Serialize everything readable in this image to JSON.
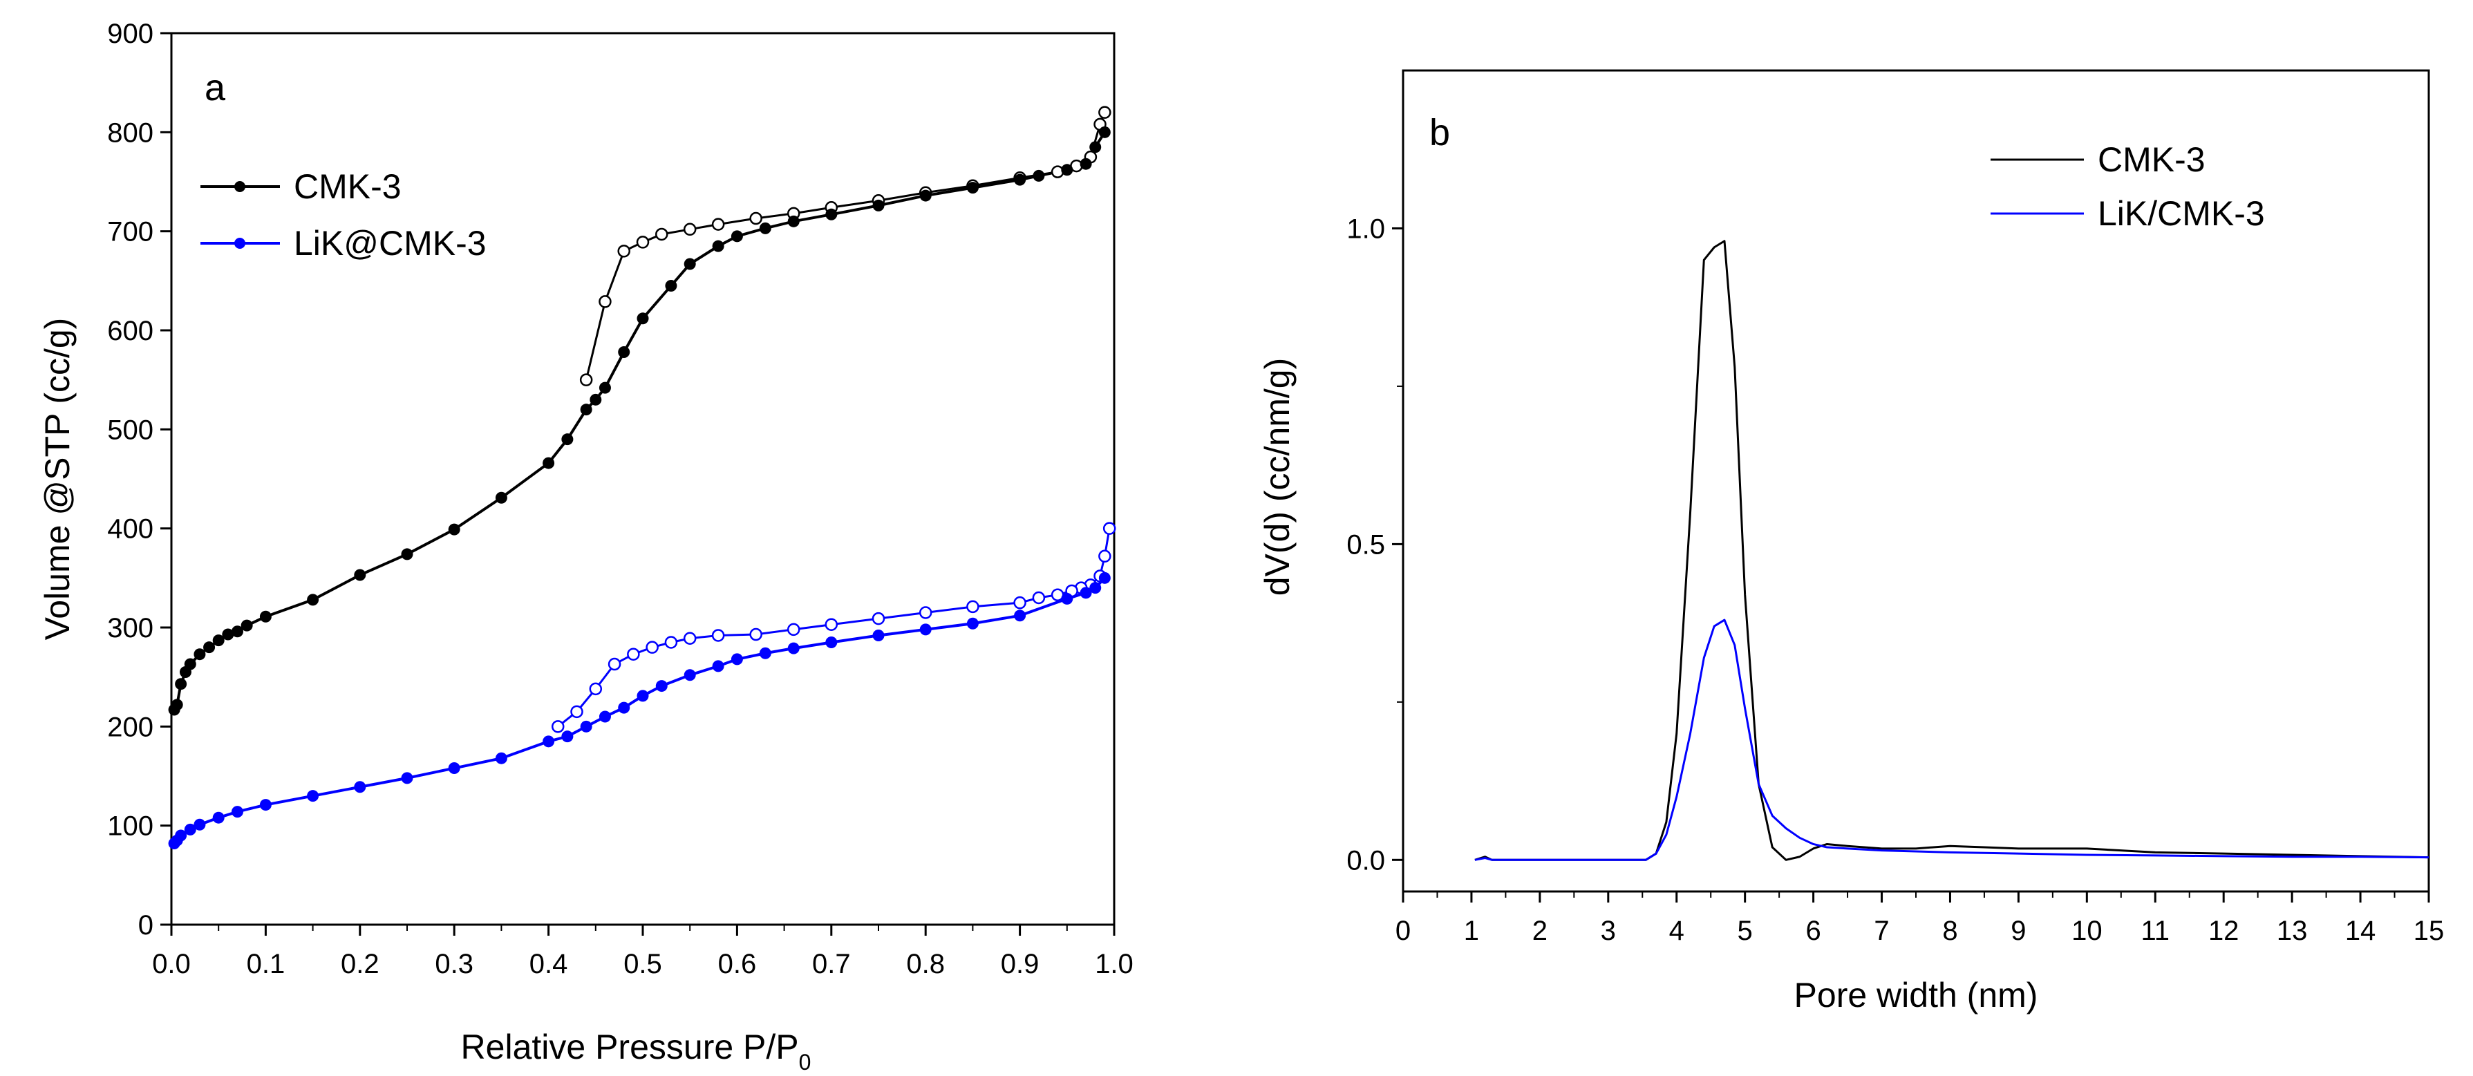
{
  "chart_data": [
    {
      "type": "line",
      "panel_label": "a",
      "title": "",
      "xlabel": "Relative Pressure P/P",
      "xlabel_subscript": "0",
      "ylabel": "Volume @STP (cc/g)",
      "xlim": [
        0.0,
        1.0
      ],
      "ylim": [
        0,
        900
      ],
      "xticks": [
        0.0,
        0.1,
        0.2,
        0.3,
        0.4,
        0.5,
        0.6,
        0.7,
        0.8,
        0.9,
        1.0
      ],
      "xtick_labels": [
        "0.0",
        "0.1",
        "0.2",
        "0.3",
        "0.4",
        "0.5",
        "0.6",
        "0.7",
        "0.8",
        "0.9",
        "1.0"
      ],
      "yticks": [
        0,
        100,
        200,
        300,
        400,
        500,
        600,
        700,
        800,
        900
      ],
      "ytick_labels": [
        "0",
        "100",
        "200",
        "300",
        "400",
        "500",
        "600",
        "700",
        "800",
        "900"
      ],
      "legend_position": "top-left",
      "series": [
        {
          "name": "CMK-3",
          "color": "#000000",
          "adsorption": {
            "x": [
              0.003,
              0.006,
              0.01,
              0.015,
              0.02,
              0.03,
              0.04,
              0.05,
              0.06,
              0.07,
              0.08,
              0.1,
              0.15,
              0.2,
              0.25,
              0.3,
              0.35,
              0.4,
              0.42,
              0.44,
              0.45,
              0.46,
              0.48,
              0.5,
              0.53,
              0.55,
              0.58,
              0.6,
              0.63,
              0.66,
              0.7,
              0.75,
              0.8,
              0.85,
              0.9,
              0.92,
              0.95,
              0.97,
              0.98,
              0.99
            ],
            "y": [
              217,
              222,
              243,
              255,
              263,
              273,
              280,
              287,
              293,
              296,
              302,
              311,
              328,
              353,
              374,
              399,
              431,
              466,
              490,
              520,
              530,
              542,
              578,
              612,
              645,
              667,
              685,
              695,
              703,
              710,
              717,
              726,
              736,
              744,
              752,
              756,
              762,
              768,
              785,
              800
            ]
          },
          "desorption": {
            "x": [
              0.99,
              0.985,
              0.975,
              0.96,
              0.94,
              0.9,
              0.85,
              0.8,
              0.75,
              0.7,
              0.66,
              0.62,
              0.58,
              0.55,
              0.52,
              0.5,
              0.48,
              0.46,
              0.44
            ],
            "y": [
              820,
              808,
              775,
              766,
              760,
              754,
              746,
              739,
              731,
              724,
              718,
              713,
              707,
              702,
              697,
              689,
              680,
              629,
              550
            ]
          }
        },
        {
          "name": "LiK@CMK-3",
          "color": "#0000ff",
          "adsorption": {
            "x": [
              0.003,
              0.006,
              0.01,
              0.02,
              0.03,
              0.05,
              0.07,
              0.1,
              0.15,
              0.2,
              0.25,
              0.3,
              0.35,
              0.4,
              0.42,
              0.44,
              0.46,
              0.48,
              0.5,
              0.52,
              0.55,
              0.58,
              0.6,
              0.63,
              0.66,
              0.7,
              0.75,
              0.8,
              0.85,
              0.9,
              0.95,
              0.97,
              0.98,
              0.99
            ],
            "y": [
              82,
              85,
              90,
              96,
              101,
              108,
              114,
              121,
              130,
              139,
              148,
              158,
              168,
              185,
              190,
              200,
              210,
              219,
              231,
              241,
              252,
              261,
              268,
              274,
              279,
              285,
              292,
              298,
              304,
              312,
              329,
              335,
              340,
              350
            ]
          },
          "desorption": {
            "x": [
              0.995,
              0.99,
              0.985,
              0.975,
              0.965,
              0.955,
              0.94,
              0.92,
              0.9,
              0.85,
              0.8,
              0.75,
              0.7,
              0.66,
              0.62,
              0.58,
              0.55,
              0.53,
              0.51,
              0.49,
              0.47,
              0.45,
              0.43,
              0.41
            ],
            "y": [
              400,
              372,
              352,
              343,
              340,
              337,
              333,
              330,
              325,
              321,
              315,
              309,
              303,
              298,
              293,
              292,
              289,
              285,
              280,
              273,
              263,
              238,
              215,
              200
            ]
          }
        }
      ]
    },
    {
      "type": "line",
      "panel_label": "b",
      "title": "",
      "xlabel": "Pore width (nm)",
      "ylabel": "dV(d) (cc/nm/g)",
      "xlim": [
        0,
        15
      ],
      "ylim": [
        -0.05,
        1.25
      ],
      "xticks": [
        0,
        1,
        2,
        3,
        4,
        5,
        6,
        7,
        8,
        9,
        10,
        11,
        12,
        13,
        14,
        15
      ],
      "xtick_labels": [
        "0",
        "1",
        "2",
        "3",
        "4",
        "5",
        "6",
        "7",
        "8",
        "9",
        "10",
        "11",
        "12",
        "13",
        "14",
        "15"
      ],
      "yticks": [
        0.0,
        0.5,
        1.0
      ],
      "ytick_labels": [
        "0.0",
        "0.5",
        "1.0"
      ],
      "legend_position": "top-right",
      "series": [
        {
          "name": "CMK-3",
          "color": "#000000",
          "x": [
            1.05,
            1.2,
            1.3,
            2.0,
            3.0,
            3.55,
            3.7,
            3.85,
            4.0,
            4.2,
            4.4,
            4.55,
            4.7,
            4.85,
            5.0,
            5.2,
            5.4,
            5.6,
            5.8,
            6.0,
            6.2,
            6.5,
            7.0,
            7.5,
            8.0,
            8.5,
            9.0,
            10.0,
            11.0,
            12.0,
            13.0,
            14.0,
            15.0
          ],
          "y": [
            0.0,
            0.005,
            0.0,
            0.0,
            0.0,
            0.0,
            0.01,
            0.06,
            0.2,
            0.55,
            0.95,
            0.97,
            0.98,
            0.78,
            0.42,
            0.12,
            0.02,
            0.0,
            0.005,
            0.018,
            0.025,
            0.022,
            0.018,
            0.018,
            0.022,
            0.02,
            0.018,
            0.018,
            0.012,
            0.01,
            0.008,
            0.006,
            0.004
          ]
        },
        {
          "name": "LiK/CMK-3",
          "color": "#0000ff",
          "x": [
            1.05,
            1.2,
            1.3,
            2.0,
            3.0,
            3.55,
            3.7,
            3.85,
            4.0,
            4.2,
            4.4,
            4.55,
            4.7,
            4.85,
            5.0,
            5.2,
            5.4,
            5.6,
            5.8,
            6.0,
            6.2,
            6.5,
            7.0,
            8.0,
            9.0,
            10.0,
            11.0,
            12.0,
            13.0,
            14.0,
            15.0
          ],
          "y": [
            0.0,
            0.003,
            0.0,
            0.0,
            0.0,
            0.0,
            0.01,
            0.04,
            0.1,
            0.2,
            0.32,
            0.37,
            0.38,
            0.34,
            0.24,
            0.12,
            0.07,
            0.05,
            0.035,
            0.025,
            0.02,
            0.018,
            0.015,
            0.012,
            0.01,
            0.008,
            0.007,
            0.006,
            0.005,
            0.005,
            0.004
          ]
        }
      ]
    }
  ]
}
